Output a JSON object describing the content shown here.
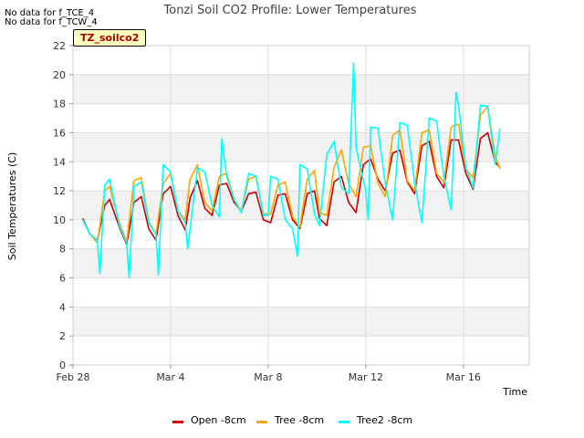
{
  "notes": [
    "No data for f_TCE_4",
    "No data for f_TCW_4"
  ],
  "site_label": "TZ_soilco2",
  "chart_data": {
    "type": "line",
    "title": "Tonzi Soil CO2 Profile: Lower Temperatures",
    "xlabel": "Time",
    "ylabel": "Soil Temperatures (C)",
    "ylim": [
      0,
      22
    ],
    "yticks": [
      0,
      2,
      4,
      6,
      8,
      10,
      12,
      14,
      16,
      18,
      20,
      22
    ],
    "xlim_days": [
      0,
      18.7
    ],
    "xticks": [
      {
        "label": "Feb 28",
        "day": 0
      },
      {
        "label": "Mar 4",
        "day": 4
      },
      {
        "label": "Mar 8",
        "day": 8
      },
      {
        "label": "Mar 12",
        "day": 12
      },
      {
        "label": "Mar 16",
        "day": 16
      }
    ],
    "grid": true,
    "banded_background": true,
    "series": [
      {
        "name": "Open -8cm",
        "color": "#cc0000",
        "x": [
          0.4,
          0.7,
          1.0,
          1.3,
          1.5,
          1.9,
          2.2,
          2.5,
          2.8,
          3.1,
          3.4,
          3.7,
          4.0,
          4.3,
          4.6,
          4.8,
          5.1,
          5.4,
          5.7,
          6.0,
          6.3,
          6.6,
          6.9,
          7.2,
          7.5,
          7.8,
          8.1,
          8.4,
          8.7,
          9.0,
          9.3,
          9.6,
          9.9,
          10.1,
          10.4,
          10.7,
          11.0,
          11.3,
          11.6,
          11.9,
          12.2,
          12.5,
          12.8,
          13.1,
          13.4,
          13.7,
          14.0,
          14.3,
          14.6,
          14.9,
          15.2,
          15.5,
          15.8,
          16.1,
          16.4,
          16.7,
          17.0,
          17.3,
          17.5
        ],
        "values": [
          10.1,
          9.0,
          8.6,
          11.0,
          11.4,
          9.5,
          8.3,
          11.2,
          11.6,
          9.4,
          8.6,
          11.8,
          12.3,
          10.3,
          9.3,
          11.5,
          12.7,
          10.8,
          10.3,
          12.4,
          12.5,
          11.2,
          10.6,
          11.8,
          11.9,
          10.0,
          9.8,
          11.7,
          11.8,
          10.0,
          9.4,
          11.8,
          12.0,
          10.1,
          9.6,
          12.6,
          13.0,
          11.2,
          10.5,
          13.8,
          14.2,
          12.8,
          12.0,
          14.6,
          14.8,
          12.6,
          11.8,
          15.1,
          15.4,
          13.0,
          12.2,
          15.5,
          15.5,
          13.2,
          12.1,
          15.6,
          16.0,
          14.0,
          13.6
        ]
      },
      {
        "name": "Tree -8cm",
        "color": "#ffa500",
        "x": [
          0.4,
          0.7,
          1.0,
          1.3,
          1.5,
          1.9,
          2.2,
          2.5,
          2.8,
          3.1,
          3.4,
          3.7,
          4.0,
          4.3,
          4.6,
          4.8,
          5.1,
          5.4,
          5.7,
          6.0,
          6.3,
          6.6,
          6.9,
          7.2,
          7.5,
          7.8,
          8.1,
          8.4,
          8.7,
          9.0,
          9.3,
          9.6,
          9.9,
          10.1,
          10.4,
          10.7,
          11.0,
          11.3,
          11.6,
          11.9,
          12.2,
          12.5,
          12.8,
          13.1,
          13.4,
          13.7,
          14.0,
          14.3,
          14.6,
          14.9,
          15.2,
          15.5,
          15.8,
          16.1,
          16.4,
          16.7,
          17.0,
          17.3,
          17.5
        ],
        "values": [
          10.0,
          9.0,
          8.4,
          12.0,
          12.3,
          9.8,
          8.5,
          12.7,
          12.9,
          9.9,
          9.0,
          12.5,
          13.2,
          10.6,
          10.0,
          12.8,
          13.8,
          11.2,
          10.6,
          13.0,
          13.2,
          11.4,
          10.6,
          12.8,
          13.0,
          10.4,
          10.4,
          12.4,
          12.6,
          10.2,
          9.5,
          12.8,
          13.4,
          10.5,
          10.3,
          13.6,
          14.8,
          12.5,
          11.6,
          15.0,
          15.1,
          12.5,
          11.6,
          15.8,
          16.2,
          12.7,
          12.0,
          16.0,
          16.2,
          13.2,
          12.6,
          16.4,
          16.6,
          13.5,
          12.9,
          17.2,
          17.8,
          14.4,
          13.5
        ]
      },
      {
        "name": "Tree2 -8cm",
        "color": "#00ffff",
        "x": [
          0.4,
          0.7,
          1.0,
          1.1,
          1.3,
          1.5,
          1.9,
          2.2,
          2.3,
          2.5,
          2.8,
          3.1,
          3.4,
          3.5,
          3.7,
          4.0,
          4.3,
          4.6,
          4.7,
          5.1,
          5.4,
          5.7,
          6.0,
          6.1,
          6.3,
          6.6,
          6.9,
          7.2,
          7.5,
          7.8,
          8.0,
          8.1,
          8.4,
          8.7,
          9.0,
          9.2,
          9.3,
          9.6,
          9.9,
          10.1,
          10.4,
          10.7,
          11.0,
          11.3,
          11.5,
          11.6,
          11.9,
          12.0,
          12.1,
          12.2,
          12.5,
          12.8,
          13.1,
          13.4,
          13.7,
          14.0,
          14.3,
          14.6,
          14.9,
          15.2,
          15.5,
          15.7,
          15.8,
          16.1,
          16.4,
          16.7,
          17.0,
          17.3,
          17.5
        ],
        "values": [
          10.0,
          9.0,
          8.6,
          6.3,
          12.4,
          12.8,
          9.6,
          8.4,
          6.0,
          12.3,
          12.6,
          9.8,
          9.0,
          6.2,
          13.8,
          13.3,
          10.6,
          9.8,
          8.0,
          13.6,
          13.3,
          11.0,
          10.2,
          15.6,
          13.0,
          11.4,
          10.5,
          13.2,
          13.0,
          10.3,
          10.3,
          13.0,
          12.8,
          10.0,
          9.4,
          7.5,
          13.8,
          13.5,
          10.4,
          9.6,
          14.5,
          15.4,
          12.2,
          11.8,
          20.8,
          15.0,
          12.7,
          12.0,
          10.0,
          16.4,
          16.3,
          12.5,
          10.0,
          16.7,
          16.5,
          12.6,
          9.8,
          17.0,
          16.8,
          13.0,
          10.7,
          18.8,
          17.9,
          13.6,
          12.2,
          17.9,
          17.8,
          13.8,
          16.3
        ]
      }
    ]
  }
}
